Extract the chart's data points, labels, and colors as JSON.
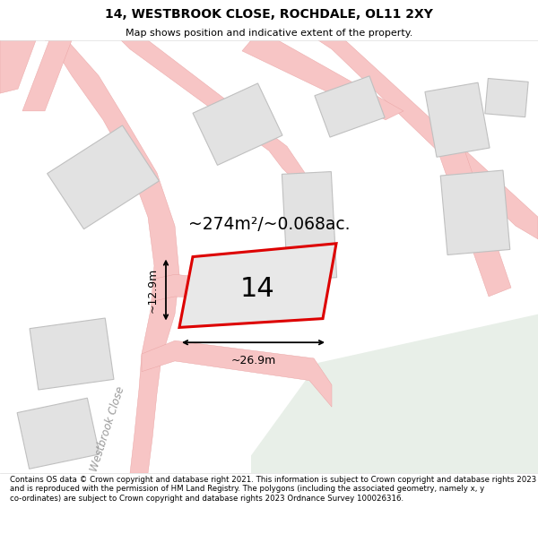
{
  "title": "14, WESTBROOK CLOSE, ROCHDALE, OL11 2XY",
  "subtitle": "Map shows position and indicative extent of the property.",
  "footer": "Contains OS data © Crown copyright and database right 2021. This information is subject to Crown copyright and database rights 2023 and is reproduced with the permission of HM Land Registry. The polygons (including the associated geometry, namely x, y co-ordinates) are subject to Crown copyright and database rights 2023 Ordnance Survey 100026316.",
  "road_color": "#f7c5c5",
  "road_edge": "#e8a0a0",
  "building_fill": "#e2e2e2",
  "building_edge": "#c0c0c0",
  "green_fill": "#e8efe8",
  "plot_outline_color": "#dd0000",
  "plot_fill": "#e8e8e8",
  "plot_label": "14",
  "area_text": "~274m²/~0.068ac.",
  "width_text": "~26.9m",
  "height_text": "~12.9m",
  "road_label": "Westbrook Close",
  "title_fontsize": 10,
  "subtitle_fontsize": 8,
  "footer_fontsize": 6.2
}
